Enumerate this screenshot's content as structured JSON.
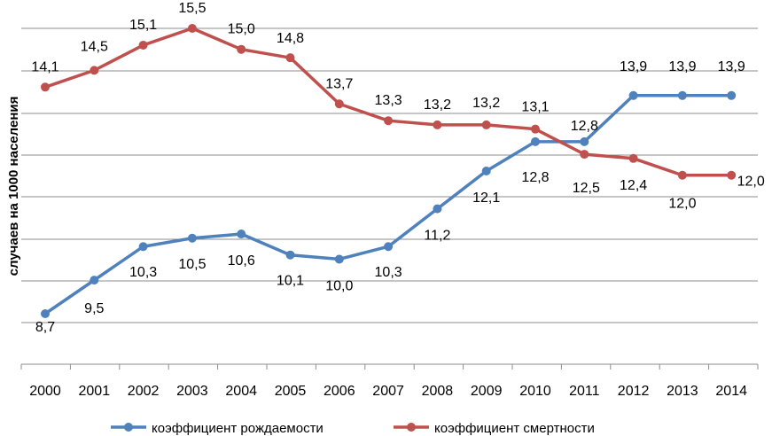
{
  "chart_data": {
    "type": "line",
    "title": "",
    "xlabel": "",
    "ylabel": "случаев на 1000 населения",
    "x": [
      2000,
      2001,
      2002,
      2003,
      2004,
      2005,
      2006,
      2007,
      2008,
      2009,
      2010,
      2011,
      2012,
      2013,
      2014
    ],
    "x_labels": [
      "2000",
      "2001",
      "2002",
      "2003",
      "2004",
      "2005",
      "2006",
      "2007",
      "2008",
      "2009",
      "2010",
      "2011",
      "2012",
      "2013",
      "2014"
    ],
    "ylim": [
      7,
      16
    ],
    "grid": true,
    "legend_position": "bottom",
    "series": [
      {
        "name": "коэффициент рождаемости",
        "color": "#4f81bd",
        "values": [
          8.7,
          9.5,
          10.3,
          10.5,
          10.6,
          10.1,
          10.0,
          10.3,
          11.2,
          12.1,
          12.8,
          12.8,
          13.9,
          13.9,
          13.9
        ],
        "labels": [
          "8,7",
          "9,5",
          "10,3",
          "10,5",
          "10,6",
          "10,1",
          "10,0",
          "10,3",
          "11,2",
          "12,1",
          "12,8",
          "12,8",
          "13,9",
          "13,9",
          "13,9"
        ]
      },
      {
        "name": "коэффициент смертности",
        "color": "#c0504d",
        "values": [
          14.1,
          14.5,
          15.1,
          15.5,
          15.0,
          14.8,
          13.7,
          13.3,
          13.2,
          13.2,
          13.1,
          12.5,
          12.4,
          12.0,
          12.0
        ],
        "labels": [
          "14,1",
          "14,5",
          "15,1",
          "15,5",
          "15,0",
          "14,8",
          "13,7",
          "13,3",
          "13,2",
          "13,2",
          "13,1",
          "12,5",
          "12,4",
          "12,0",
          "12,0"
        ]
      }
    ]
  }
}
